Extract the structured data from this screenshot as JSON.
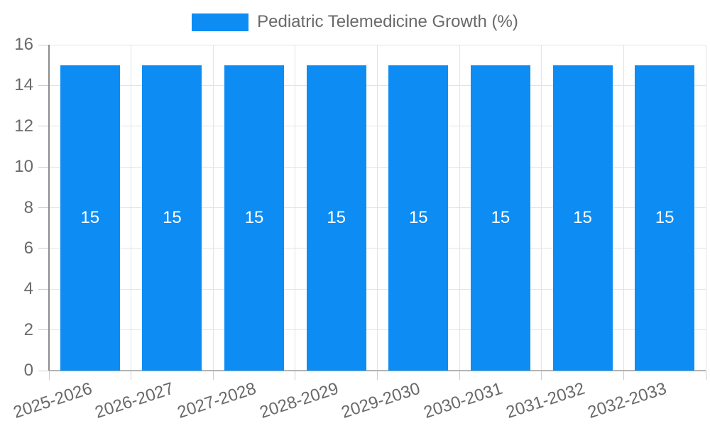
{
  "legend": {
    "label": "Pediatric Telemedicine Growth (%)"
  },
  "chart_data": {
    "type": "bar",
    "title": "Pediatric Telemedicine Growth (%)",
    "categories": [
      "2025-2026",
      "2026-2027",
      "2027-2028",
      "2028-2029",
      "2029-2030",
      "2030-2031",
      "2031-2032",
      "2032-2033"
    ],
    "values": [
      15,
      15,
      15,
      15,
      15,
      15,
      15,
      15
    ],
    "bar_value_labels": [
      "15",
      "15",
      "15",
      "15",
      "15",
      "15",
      "15",
      "15"
    ],
    "xlabel": "",
    "ylabel": "",
    "ylim": [
      0,
      16
    ],
    "yticks": [
      0,
      2,
      4,
      6,
      8,
      10,
      12,
      14,
      16
    ],
    "grid": true,
    "legend_position": "top",
    "bar_color": "#0d8df4",
    "bar_label_color": "#ffffff",
    "axis_text_color": "#696969",
    "gridline_color": "#e3e3e3"
  }
}
